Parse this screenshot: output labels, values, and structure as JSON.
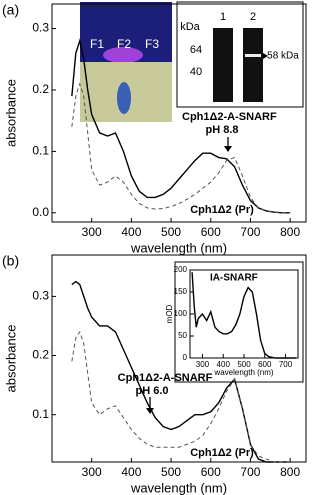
{
  "chart_data": [
    {
      "type": "line",
      "panel_label": "(a)",
      "xlabel": "wavelength (nm)",
      "ylabel": "absorbance",
      "x": [
        250,
        260,
        270,
        280,
        290,
        300,
        320,
        340,
        360,
        380,
        400,
        420,
        440,
        460,
        480,
        500,
        520,
        540,
        560,
        580,
        600,
        620,
        640,
        660,
        680,
        700,
        720,
        740,
        760,
        780,
        800
      ],
      "series": [
        {
          "color": "#000000",
          "style": "solid",
          "values": [
            0.19,
            0.26,
            0.28,
            0.25,
            0.2,
            0.16,
            0.13,
            0.125,
            0.13,
            0.1,
            0.06,
            0.035,
            0.025,
            0.025,
            0.03,
            0.04,
            0.055,
            0.07,
            0.085,
            0.097,
            0.097,
            0.09,
            0.088,
            0.075,
            0.045,
            0.02,
            0.008,
            0.003,
            0.001,
            0,
            0
          ]
        },
        {
          "color": "#555555",
          "style": "dashed",
          "values": [
            0.14,
            0.19,
            0.21,
            0.19,
            0.13,
            0.07,
            0.045,
            0.05,
            0.06,
            0.05,
            0.03,
            0.015,
            0.008,
            0.006,
            0.007,
            0.01,
            0.015,
            0.022,
            0.03,
            0.04,
            0.05,
            0.065,
            0.085,
            0.09,
            0.06,
            0.025,
            0.008,
            0.003,
            0.001,
            0,
            0
          ]
        }
      ],
      "xlim": [
        200,
        840
      ],
      "xticks": [
        300,
        400,
        500,
        600,
        700,
        800
      ],
      "ylim": [
        -0.015,
        0.34
      ],
      "yticks": [
        {
          "value": 0,
          "label": "0.0"
        },
        0.1,
        0.2,
        0.3
      ],
      "annotations": [
        "Cph1Δ2-A-SNARF",
        "pH 8.8",
        "Cph1Δ2 (Pr)",
        "F1",
        "F2",
        "F3",
        "kDa",
        "1",
        "2",
        "64",
        "40",
        "58 kDa"
      ]
    },
    {
      "type": "line",
      "panel_label": "(b)",
      "xlabel": "wavelength (nm)",
      "ylabel": "absorbance",
      "x": [
        250,
        260,
        270,
        280,
        290,
        300,
        320,
        340,
        360,
        380,
        400,
        420,
        440,
        460,
        480,
        500,
        520,
        540,
        560,
        580,
        600,
        620,
        640,
        660,
        680,
        700,
        720,
        740,
        760,
        780,
        800
      ],
      "series": [
        {
          "color": "#000000",
          "style": "solid",
          "values": [
            0.32,
            0.325,
            0.32,
            0.3,
            0.28,
            0.265,
            0.25,
            0.25,
            0.24,
            0.21,
            0.18,
            0.15,
            0.12,
            0.095,
            0.08,
            0.075,
            0.08,
            0.09,
            0.1,
            0.1,
            0.105,
            0.12,
            0.145,
            0.16,
            0.11,
            0.05,
            0.025,
            0.02,
            0.02,
            0.02,
            0.02
          ]
        },
        {
          "color": "#555555",
          "style": "dashed",
          "values": [
            0.19,
            0.23,
            0.24,
            0.22,
            0.17,
            0.12,
            0.1,
            0.11,
            0.115,
            0.095,
            0.075,
            0.06,
            0.05,
            0.045,
            0.045,
            0.045,
            0.045,
            0.05,
            0.055,
            0.065,
            0.085,
            0.11,
            0.14,
            0.16,
            0.11,
            0.05,
            0.03,
            0.025,
            0.02,
            0.02,
            0.02
          ]
        }
      ],
      "xlim": [
        200,
        840
      ],
      "xticks": [
        300,
        400,
        500,
        600,
        700,
        800
      ],
      "ylim": [
        0.02,
        0.37
      ],
      "yticks": [
        0.1,
        0.2,
        0.3
      ],
      "annotations": [
        "Cph1Δ2-A-SNARF",
        "pH 6.0",
        "Cph1Δ2 (Pr)"
      ]
    },
    {
      "type": "line",
      "title": "IA-SNARF",
      "xlabel": "wavelength (nm)",
      "ylabel": "mOD",
      "x": [
        250,
        260,
        270,
        280,
        300,
        320,
        340,
        360,
        380,
        400,
        420,
        440,
        460,
        480,
        500,
        520,
        540,
        560,
        580,
        600,
        620,
        650,
        700,
        750
      ],
      "series": [
        {
          "color": "#000000",
          "style": "solid",
          "values": [
            195,
            120,
            70,
            90,
            100,
            85,
            105,
            70,
            60,
            55,
            55,
            60,
            75,
            100,
            140,
            160,
            150,
            100,
            40,
            10,
            3,
            0,
            0,
            0
          ]
        }
      ],
      "xlim": [
        240,
        760
      ],
      "xticks": [
        300,
        400,
        500,
        600,
        700
      ],
      "ylim": [
        0,
        200
      ],
      "yticks": [
        0,
        50,
        100,
        150,
        200
      ]
    }
  ]
}
